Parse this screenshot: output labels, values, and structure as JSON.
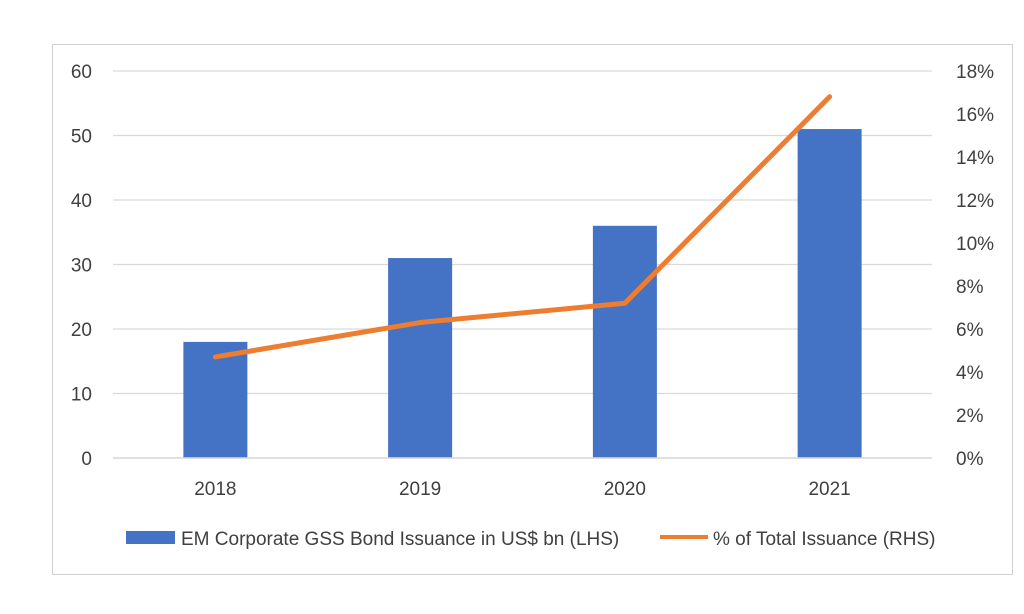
{
  "chart_data": {
    "type": "bar",
    "categories": [
      "2018",
      "2019",
      "2020",
      "2021"
    ],
    "series": [
      {
        "name": "EM Corporate GSS Bond Issuance in US$ bn (LHS)",
        "type": "bar",
        "axis": "left",
        "color": "#4472c4",
        "values": [
          18,
          31,
          36,
          51
        ]
      },
      {
        "name": "% of Total Issuance (RHS)",
        "type": "line",
        "axis": "right",
        "color": "#ed7d31",
        "values": [
          4.7,
          6.3,
          7.2,
          16.8
        ]
      }
    ],
    "y_left": {
      "ylim": [
        0,
        60
      ],
      "ticks": [
        0,
        10,
        20,
        30,
        40,
        50,
        60
      ],
      "tick_labels": [
        "0",
        "10",
        "20",
        "30",
        "40",
        "50",
        "60"
      ]
    },
    "y_right": {
      "ylim": [
        0,
        18
      ],
      "ticks": [
        0,
        2,
        4,
        6,
        8,
        10,
        12,
        14,
        16,
        18
      ],
      "tick_labels": [
        "0%",
        "2%",
        "4%",
        "6%",
        "8%",
        "10%",
        "12%",
        "14%",
        "16%",
        "18%"
      ]
    },
    "grid": true,
    "legend_position": "bottom"
  }
}
